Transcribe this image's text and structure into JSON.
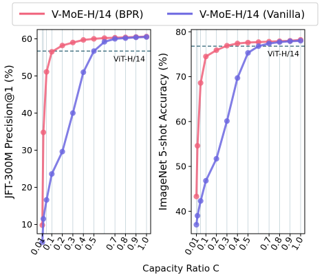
{
  "legend": {
    "bpr": "V-MoE-H/14 (BPR)",
    "vanilla": "V-MoE-H/14 (Vanilla)"
  },
  "colors": {
    "bpr": "#f0607a",
    "vanilla": "#6b66e0",
    "reference": "#3d6e7e",
    "gridline": "#8aa8b4"
  },
  "xlabel": "Capacity Ratio C",
  "chart_data": [
    {
      "type": "line",
      "ylabel": "JFT-300M Precision@1 (%)",
      "ylim": [
        7.5,
        62.5
      ],
      "yticks": [
        10,
        20,
        30,
        40,
        50,
        60
      ],
      "x": [
        0.01,
        0.02,
        0.05,
        0.1,
        0.2,
        0.3,
        0.4,
        0.5,
        0.6,
        0.7,
        0.8,
        0.9,
        1.0
      ],
      "xticks": [
        "0.01",
        "0.1",
        "0.2",
        "0.3",
        "0.4",
        "0.5",
        "0.7",
        "0.8",
        "0.9",
        "1.0"
      ],
      "series": [
        {
          "name": "V-MoE-H/14 (BPR)",
          "values": [
            9.8,
            34.8,
            51.1,
            56.5,
            58.2,
            59.0,
            59.7,
            60.0,
            60.2,
            60.3,
            60.4,
            60.5,
            60.6
          ]
        },
        {
          "name": "V-MoE-H/14 (Vanilla)",
          "values": [
            5.2,
            11.5,
            16.6,
            23.6,
            29.6,
            40.0,
            51.0,
            56.7,
            59.2,
            60.0,
            60.2,
            60.4,
            60.5
          ]
        }
      ],
      "reference": {
        "label": "ViT-H/14",
        "value": 56.7
      }
    },
    {
      "type": "line",
      "ylabel": "ImageNet 5-shot Accuracy (%)",
      "ylim": [
        35,
        80.5
      ],
      "yticks": [
        40,
        50,
        60,
        70,
        80
      ],
      "x": [
        0.01,
        0.02,
        0.05,
        0.1,
        0.2,
        0.3,
        0.4,
        0.5,
        0.6,
        0.7,
        0.8,
        0.9,
        1.0
      ],
      "xticks": [
        "0.01",
        "0.1",
        "0.2",
        "0.3",
        "0.4",
        "0.5",
        "0.7",
        "0.8",
        "0.9",
        "1.0"
      ],
      "series": [
        {
          "name": "V-MoE-H/14 (BPR)",
          "values": [
            43.3,
            54.6,
            68.6,
            74.5,
            75.9,
            76.9,
            77.4,
            77.6,
            77.7,
            77.8,
            77.9,
            78.0,
            78.2
          ]
        },
        {
          "name": "V-MoE-H/14 (Vanilla)",
          "values": [
            37.0,
            39.0,
            42.3,
            46.8,
            51.7,
            60.1,
            69.7,
            75.3,
            76.8,
            77.4,
            77.7,
            77.9,
            78.0
          ]
        }
      ],
      "reference": {
        "label": "ViT-H/14",
        "value": 76.8
      }
    }
  ]
}
